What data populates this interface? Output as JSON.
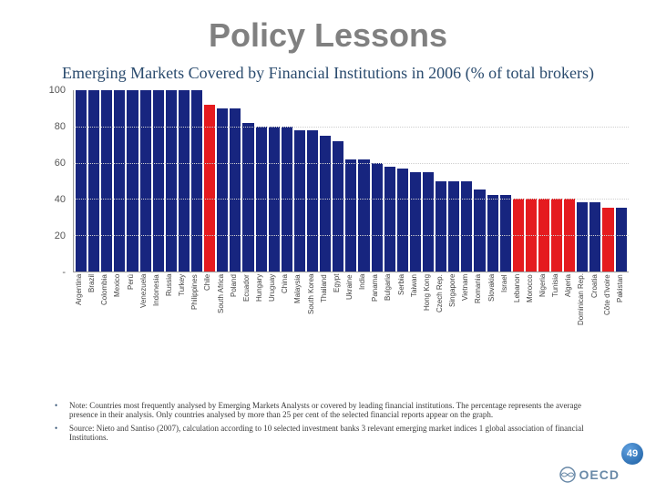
{
  "title": "Policy Lessons",
  "subtitle": "Emerging Markets Covered by Financial Institutions in 2006 (% of total brokers)",
  "chart": {
    "type": "bar",
    "ylim": [
      0,
      100
    ],
    "ytick_step": 20,
    "yticks": [
      0,
      20,
      40,
      60,
      80,
      100
    ],
    "ytick_labels": [
      "-",
      "20",
      "40",
      "60",
      "80",
      "100"
    ],
    "grid_color": "#cfcfcf",
    "axis_color": "#999999",
    "background_color": "#ffffff",
    "bar_colors": {
      "default": "#17257f",
      "highlight": "#e51b1f"
    },
    "label_fontsize": 8,
    "ytick_fontsize": 11,
    "bars": [
      {
        "label": "Argentina",
        "value": 100,
        "highlight": false
      },
      {
        "label": "Brazil",
        "value": 100,
        "highlight": false
      },
      {
        "label": "Colombia",
        "value": 100,
        "highlight": false
      },
      {
        "label": "Mexico",
        "value": 100,
        "highlight": false
      },
      {
        "label": "Perú",
        "value": 100,
        "highlight": false
      },
      {
        "label": "Venezuela",
        "value": 100,
        "highlight": false
      },
      {
        "label": "Indonesia",
        "value": 100,
        "highlight": false
      },
      {
        "label": "Russia",
        "value": 100,
        "highlight": false
      },
      {
        "label": "Turkey",
        "value": 100,
        "highlight": false
      },
      {
        "label": "Philippines",
        "value": 100,
        "highlight": false
      },
      {
        "label": "Chile",
        "value": 92,
        "highlight": true
      },
      {
        "label": "South Africa",
        "value": 90,
        "highlight": false
      },
      {
        "label": "Poland",
        "value": 90,
        "highlight": false
      },
      {
        "label": "Ecuador",
        "value": 82,
        "highlight": false
      },
      {
        "label": "Hungary",
        "value": 80,
        "highlight": false
      },
      {
        "label": "Uruguay",
        "value": 80,
        "highlight": false
      },
      {
        "label": "China",
        "value": 80,
        "highlight": false
      },
      {
        "label": "Malaysia",
        "value": 78,
        "highlight": false
      },
      {
        "label": "South Korea",
        "value": 78,
        "highlight": false
      },
      {
        "label": "Thailand",
        "value": 75,
        "highlight": false
      },
      {
        "label": "Egypt",
        "value": 72,
        "highlight": false
      },
      {
        "label": "Ukraine",
        "value": 62,
        "highlight": false
      },
      {
        "label": "India",
        "value": 62,
        "highlight": false
      },
      {
        "label": "Panama",
        "value": 60,
        "highlight": false
      },
      {
        "label": "Bulgaria",
        "value": 58,
        "highlight": false
      },
      {
        "label": "Serbia",
        "value": 57,
        "highlight": false
      },
      {
        "label": "Taiwan",
        "value": 55,
        "highlight": false
      },
      {
        "label": "Hong Kong",
        "value": 55,
        "highlight": false
      },
      {
        "label": "Czech Rep.",
        "value": 50,
        "highlight": false
      },
      {
        "label": "Singapore",
        "value": 50,
        "highlight": false
      },
      {
        "label": "Vietnam",
        "value": 50,
        "highlight": false
      },
      {
        "label": "Romania",
        "value": 45,
        "highlight": false
      },
      {
        "label": "Slovakia",
        "value": 42,
        "highlight": false
      },
      {
        "label": "Israel",
        "value": 42,
        "highlight": false
      },
      {
        "label": "Lebanon",
        "value": 40,
        "highlight": true
      },
      {
        "label": "Morocco",
        "value": 40,
        "highlight": true
      },
      {
        "label": "Nigeria",
        "value": 40,
        "highlight": true
      },
      {
        "label": "Tunisia",
        "value": 40,
        "highlight": true
      },
      {
        "label": "Algeria",
        "value": 40,
        "highlight": true
      },
      {
        "label": "Dominican Rep.",
        "value": 38,
        "highlight": false
      },
      {
        "label": "Croatia",
        "value": 38,
        "highlight": false
      },
      {
        "label": "Côte d'Ivoire",
        "value": 35,
        "highlight": true
      },
      {
        "label": "Pakistan",
        "value": 35,
        "highlight": false
      }
    ]
  },
  "notes": [
    "Note: Countries most frequently analysed by Emerging Markets Analysts or covered by leading financial institutions. The percentage represents the average presence in their analysis. Only countries analysed by more than 25 per cent of the selected financial reports appear on the graph.",
    "Source: Nieto and Santiso (2007), calculation according to 10 selected investment banks 3 relevant emerging market indices 1 global association of financial Institutions."
  ],
  "logo_text": "OECD",
  "page_number": "49"
}
